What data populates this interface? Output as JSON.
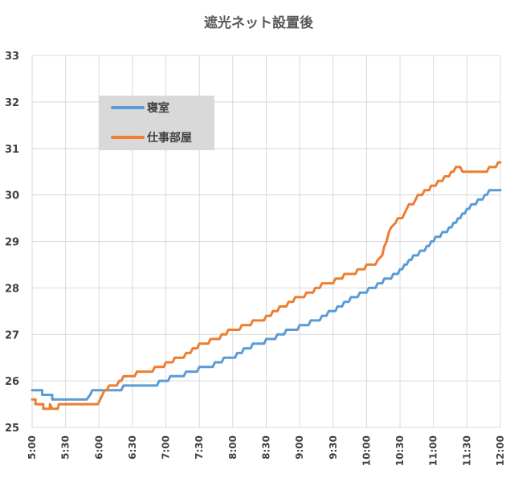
{
  "chart_data": {
    "type": "line",
    "title": "遮光ネット設置後",
    "xlabel": "",
    "ylabel": "",
    "ylim": [
      25,
      33
    ],
    "yticks": [
      "25",
      "26",
      "27",
      "28",
      "29",
      "30",
      "31",
      "32",
      "33"
    ],
    "xlim": [
      "5:00",
      "12:00"
    ],
    "xticks": [
      "5:00",
      "5:30",
      "6:00",
      "6:30",
      "7:00",
      "7:30",
      "8:00",
      "8:30",
      "9:00",
      "9:30",
      "10:00",
      "10:30",
      "11:00",
      "11:30",
      "12:00"
    ],
    "grid": true,
    "legend": "top-left",
    "series": [
      {
        "name": "寝室",
        "color": "#5B9BD5",
        "points": [
          [
            "5:00",
            25.8
          ],
          [
            "5:09",
            25.8
          ],
          [
            "5:09",
            25.7
          ],
          [
            "5:18",
            25.7
          ],
          [
            "5:18",
            25.6
          ],
          [
            "5:49",
            25.6
          ],
          [
            "5:52",
            25.7
          ],
          [
            "5:54",
            25.8
          ],
          [
            "6:20",
            25.8
          ],
          [
            "6:22",
            25.9
          ],
          [
            "6:52",
            25.9
          ],
          [
            "6:54",
            26.0
          ],
          [
            "7:02",
            26.0
          ],
          [
            "7:04",
            26.1
          ],
          [
            "7:16",
            26.1
          ],
          [
            "7:18",
            26.2
          ],
          [
            "7:28",
            26.2
          ],
          [
            "7:30",
            26.3
          ],
          [
            "7:42",
            26.3
          ],
          [
            "7:44",
            26.4
          ],
          [
            "7:50",
            26.4
          ],
          [
            "7:52",
            26.5
          ],
          [
            "8:02",
            26.5
          ],
          [
            "8:04",
            26.6
          ],
          [
            "8:08",
            26.6
          ],
          [
            "8:10",
            26.7
          ],
          [
            "8:16",
            26.7
          ],
          [
            "8:18",
            26.8
          ],
          [
            "8:28",
            26.8
          ],
          [
            "8:30",
            26.9
          ],
          [
            "8:38",
            26.9
          ],
          [
            "8:40",
            27.0
          ],
          [
            "8:46",
            27.0
          ],
          [
            "8:48",
            27.1
          ],
          [
            "8:58",
            27.1
          ],
          [
            "9:00",
            27.2
          ],
          [
            "9:08",
            27.2
          ],
          [
            "9:10",
            27.3
          ],
          [
            "9:18",
            27.3
          ],
          [
            "9:20",
            27.4
          ],
          [
            "9:24",
            27.4
          ],
          [
            "9:26",
            27.5
          ],
          [
            "9:32",
            27.5
          ],
          [
            "9:34",
            27.6
          ],
          [
            "9:38",
            27.6
          ],
          [
            "9:40",
            27.7
          ],
          [
            "9:44",
            27.7
          ],
          [
            "9:46",
            27.8
          ],
          [
            "9:52",
            27.8
          ],
          [
            "9:54",
            27.9
          ],
          [
            "10:00",
            27.9
          ],
          [
            "10:02",
            28.0
          ],
          [
            "10:08",
            28.0
          ],
          [
            "10:10",
            28.1
          ],
          [
            "10:14",
            28.1
          ],
          [
            "10:16",
            28.2
          ],
          [
            "10:22",
            28.2
          ],
          [
            "10:24",
            28.3
          ],
          [
            "10:28",
            28.3
          ],
          [
            "10:30",
            28.4
          ],
          [
            "10:32",
            28.4
          ],
          [
            "10:34",
            28.5
          ],
          [
            "10:36",
            28.5
          ],
          [
            "10:38",
            28.6
          ],
          [
            "10:40",
            28.6
          ],
          [
            "10:42",
            28.7
          ],
          [
            "10:46",
            28.7
          ],
          [
            "10:48",
            28.8
          ],
          [
            "10:52",
            28.8
          ],
          [
            "10:54",
            28.9
          ],
          [
            "10:56",
            28.9
          ],
          [
            "10:58",
            29.0
          ],
          [
            "11:00",
            29.0
          ],
          [
            "11:02",
            29.1
          ],
          [
            "11:06",
            29.1
          ],
          [
            "11:08",
            29.2
          ],
          [
            "11:12",
            29.2
          ],
          [
            "11:14",
            29.3
          ],
          [
            "11:16",
            29.3
          ],
          [
            "11:18",
            29.4
          ],
          [
            "11:20",
            29.4
          ],
          [
            "11:22",
            29.5
          ],
          [
            "11:24",
            29.5
          ],
          [
            "11:26",
            29.6
          ],
          [
            "11:28",
            29.6
          ],
          [
            "11:30",
            29.7
          ],
          [
            "11:32",
            29.7
          ],
          [
            "11:34",
            29.8
          ],
          [
            "11:38",
            29.8
          ],
          [
            "11:40",
            29.9
          ],
          [
            "11:44",
            29.9
          ],
          [
            "11:46",
            30.0
          ],
          [
            "11:48",
            30.0
          ],
          [
            "11:50",
            30.1
          ],
          [
            "12:00",
            30.1
          ]
        ]
      },
      {
        "name": "仕事部屋",
        "color": "#ED7D31",
        "points": [
          [
            "5:00",
            25.6
          ],
          [
            "5:03",
            25.6
          ],
          [
            "5:03",
            25.5
          ],
          [
            "5:10",
            25.5
          ],
          [
            "5:10",
            25.4
          ],
          [
            "5:16",
            25.4
          ],
          [
            "5:16",
            25.5
          ],
          [
            "5:18",
            25.4
          ],
          [
            "5:23",
            25.4
          ],
          [
            "5:24",
            25.5
          ],
          [
            "5:59",
            25.5
          ],
          [
            "6:01",
            25.6
          ],
          [
            "6:03",
            25.7
          ],
          [
            "6:05",
            25.8
          ],
          [
            "6:07",
            25.8
          ],
          [
            "6:09",
            25.9
          ],
          [
            "6:16",
            25.9
          ],
          [
            "6:18",
            26.0
          ],
          [
            "6:20",
            26.0
          ],
          [
            "6:22",
            26.1
          ],
          [
            "6:32",
            26.1
          ],
          [
            "6:34",
            26.2
          ],
          [
            "6:48",
            26.2
          ],
          [
            "6:50",
            26.3
          ],
          [
            "6:58",
            26.3
          ],
          [
            "7:00",
            26.4
          ],
          [
            "7:06",
            26.4
          ],
          [
            "7:08",
            26.5
          ],
          [
            "7:16",
            26.5
          ],
          [
            "7:18",
            26.6
          ],
          [
            "7:22",
            26.6
          ],
          [
            "7:24",
            26.7
          ],
          [
            "7:28",
            26.7
          ],
          [
            "7:30",
            26.8
          ],
          [
            "7:38",
            26.8
          ],
          [
            "7:40",
            26.9
          ],
          [
            "7:48",
            26.9
          ],
          [
            "7:50",
            27.0
          ],
          [
            "7:54",
            27.0
          ],
          [
            "7:56",
            27.1
          ],
          [
            "8:06",
            27.1
          ],
          [
            "8:08",
            27.2
          ],
          [
            "8:16",
            27.2
          ],
          [
            "8:18",
            27.3
          ],
          [
            "8:28",
            27.3
          ],
          [
            "8:30",
            27.4
          ],
          [
            "8:34",
            27.4
          ],
          [
            "8:36",
            27.5
          ],
          [
            "8:40",
            27.5
          ],
          [
            "8:42",
            27.6
          ],
          [
            "8:48",
            27.6
          ],
          [
            "8:50",
            27.7
          ],
          [
            "8:54",
            27.7
          ],
          [
            "8:56",
            27.8
          ],
          [
            "9:04",
            27.8
          ],
          [
            "9:06",
            27.9
          ],
          [
            "9:12",
            27.9
          ],
          [
            "9:14",
            28.0
          ],
          [
            "9:18",
            28.0
          ],
          [
            "9:20",
            28.1
          ],
          [
            "9:30",
            28.1
          ],
          [
            "9:32",
            28.2
          ],
          [
            "9:38",
            28.2
          ],
          [
            "9:40",
            28.3
          ],
          [
            "9:50",
            28.3
          ],
          [
            "9:52",
            28.4
          ],
          [
            "9:58",
            28.4
          ],
          [
            "10:00",
            28.5
          ],
          [
            "10:08",
            28.5
          ],
          [
            "10:10",
            28.6
          ],
          [
            "10:14",
            28.7
          ],
          [
            "10:16",
            28.9
          ],
          [
            "10:18",
            29.0
          ],
          [
            "10:20",
            29.2
          ],
          [
            "10:22",
            29.3
          ],
          [
            "10:26",
            29.4
          ],
          [
            "10:28",
            29.5
          ],
          [
            "10:32",
            29.5
          ],
          [
            "10:34",
            29.6
          ],
          [
            "10:36",
            29.7
          ],
          [
            "10:38",
            29.8
          ],
          [
            "10:42",
            29.8
          ],
          [
            "10:44",
            29.9
          ],
          [
            "10:46",
            30.0
          ],
          [
            "10:50",
            30.0
          ],
          [
            "10:52",
            30.1
          ],
          [
            "10:56",
            30.1
          ],
          [
            "10:58",
            30.2
          ],
          [
            "11:02",
            30.2
          ],
          [
            "11:04",
            30.3
          ],
          [
            "11:08",
            30.3
          ],
          [
            "11:10",
            30.4
          ],
          [
            "11:14",
            30.4
          ],
          [
            "11:16",
            30.5
          ],
          [
            "11:18",
            30.5
          ],
          [
            "11:20",
            30.6
          ],
          [
            "11:24",
            30.6
          ],
          [
            "11:26",
            30.5
          ],
          [
            "11:48",
            30.5
          ],
          [
            "11:50",
            30.6
          ],
          [
            "11:56",
            30.6
          ],
          [
            "11:58",
            30.7
          ],
          [
            "12:00",
            30.7
          ]
        ]
      }
    ]
  }
}
